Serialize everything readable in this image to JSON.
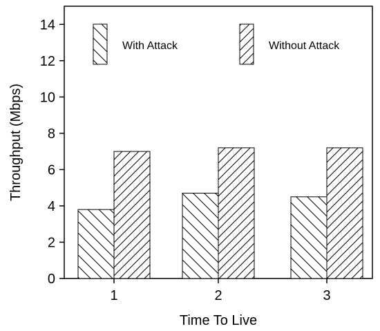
{
  "chart_data": {
    "type": "bar",
    "categories": [
      "1",
      "2",
      "3"
    ],
    "series": [
      {
        "name": "With Attack",
        "values": [
          3.8,
          4.7,
          4.5
        ],
        "pattern": "back-diagonal-hatch"
      },
      {
        "name": "Without Attack",
        "values": [
          7.0,
          7.2,
          7.2
        ],
        "pattern": "forward-diagonal-hatch"
      }
    ],
    "title": "",
    "xlabel": "Time To Live",
    "ylabel": "Throughput (Mbps)",
    "ylim": [
      0,
      15
    ],
    "yticks": [
      "0",
      "2",
      "4",
      "6",
      "8",
      "10",
      "12",
      "14"
    ],
    "grid": false,
    "legend_position": "top",
    "colors": {
      "stroke": "#000000",
      "fill": "#ffffff",
      "hatch": "#000000"
    }
  }
}
